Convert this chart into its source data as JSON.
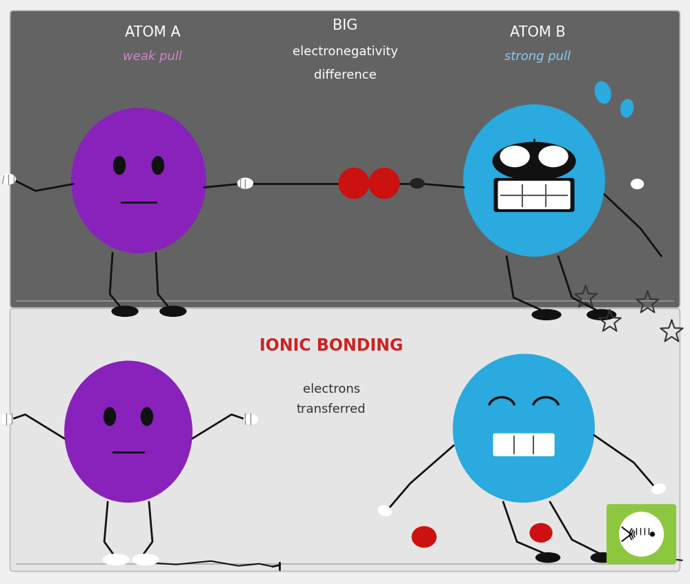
{
  "top_bg_color": "#636363",
  "bottom_bg_color": "#e5e5e5",
  "outer_bg_color": "#f0f0f0",
  "atom_a_color": "#8822bb",
  "atom_b_color": "#2aaade",
  "electron_color": "#cc1111",
  "text_atom_a": "ATOM A",
  "text_atom_b": "ATOM B",
  "text_weak": "weak pull",
  "text_strong": "strong pull",
  "text_big": "BIG",
  "text_elec": "electronegativity",
  "text_diff": "difference",
  "text_ionic": "IONIC BONDING",
  "text_electrons": "electrons",
  "text_transferred": "transferred",
  "weak_color": "#cc88cc",
  "strong_color": "#88ccee",
  "ionic_color": "#cc2222",
  "line_color": "#111111",
  "white_color": "#ffffff",
  "logo_bg": "#8dc63f",
  "top_text_color": "#ffffff",
  "bottom_text_color": "#333333",
  "sweat_color": "#2aaade"
}
